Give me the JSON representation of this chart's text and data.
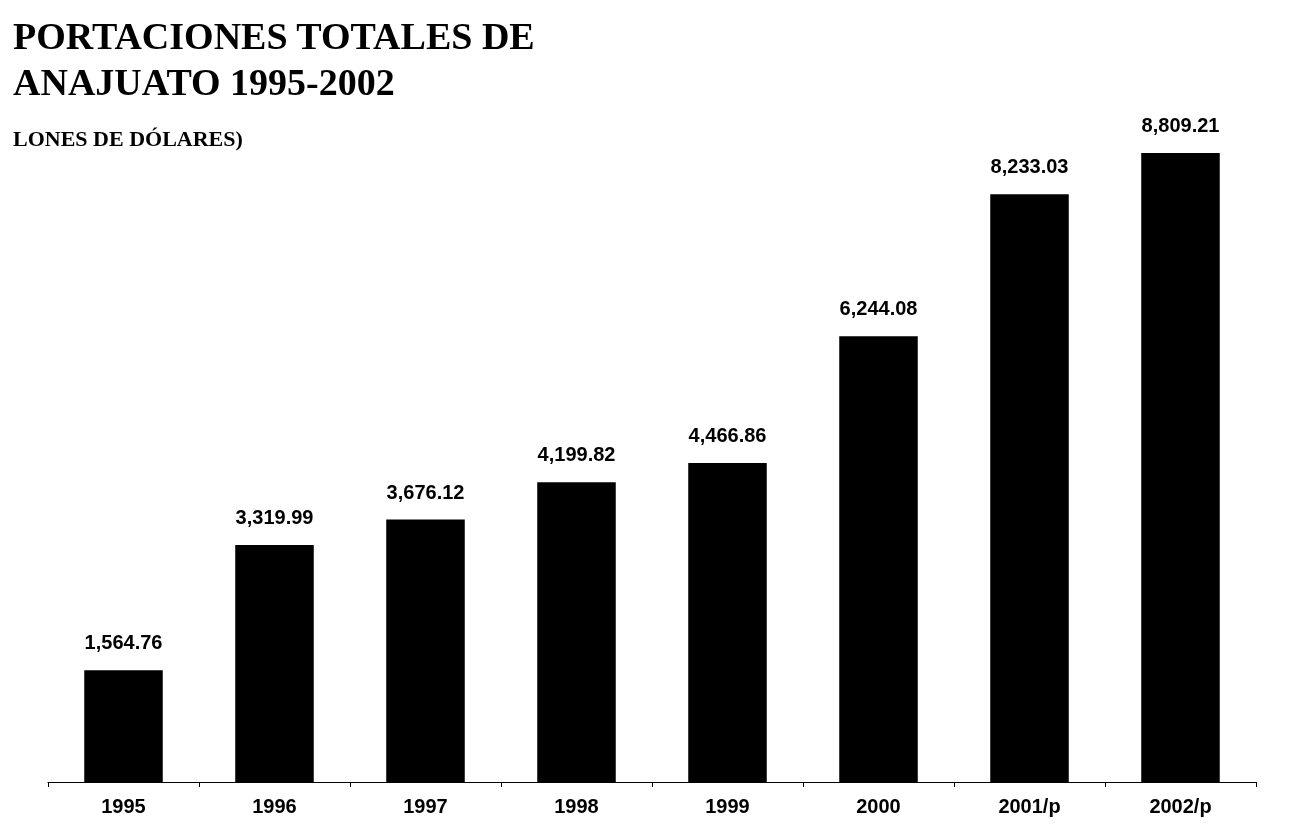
{
  "chart_data": {
    "type": "bar",
    "title": "PORTACIONES TOTALES DE\nANAJUATO 1995-2002",
    "subtitle": "LONES DE DÓLARES)",
    "categories": [
      "1995",
      "1996",
      "1997",
      "1998",
      "1999",
      "2000",
      "2001/p",
      "2002/p"
    ],
    "values": [
      1564.76,
      3319.99,
      3676.12,
      4199.82,
      4466.86,
      6244.08,
      8233.03,
      8809.21
    ],
    "value_labels": [
      "1,564.76",
      "3,319.99",
      "3,676.12",
      "4,199.82",
      "4,466.86",
      "6,244.08",
      "8,233.03",
      "8,809.21"
    ],
    "color": "#000000",
    "grid": false
  }
}
